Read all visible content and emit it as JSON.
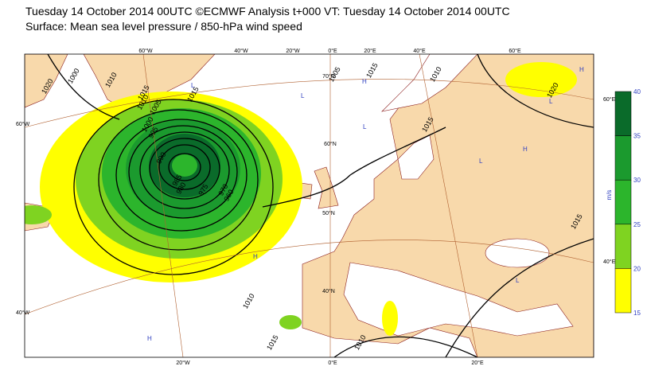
{
  "header": {
    "title": "Tuesday 14 October 2014 00UTC ©ECMWF Analysis t+000 VT: Tuesday 14 October 2014 00UTC",
    "subtitle": "Surface: Mean sea level pressure / 850-hPa wind speed"
  },
  "graticule": {
    "top": [
      "60°W",
      "40°W",
      "20°W",
      "0°E",
      "20°E",
      "40°E",
      "60°E"
    ],
    "bottom": [
      "20°W",
      "0°E",
      "20°E"
    ],
    "left": [
      "60°W",
      "40°W"
    ],
    "right": [
      "60°E",
      "40°E"
    ],
    "latitudes": [
      "70°N",
      "60°N",
      "50°N",
      "40°N"
    ]
  },
  "isobar_labels": [
    "1020",
    "1000",
    "1010",
    "1005",
    "1000",
    "995",
    "990",
    "985",
    "980",
    "975",
    "970",
    "960",
    "1010",
    "1015",
    "1015",
    "1010",
    "1015",
    "1020",
    "1015",
    "1015",
    "1005",
    "1010",
    "1015",
    "1010"
  ],
  "pressure_centres": [
    "L",
    "L",
    "H",
    "H",
    "H",
    "L",
    "L",
    "H",
    "L",
    "L",
    "H"
  ],
  "colorbar": {
    "unit": "m/s",
    "labels": [
      "40",
      "35",
      "30",
      "25",
      "20",
      "15"
    ]
  }
}
